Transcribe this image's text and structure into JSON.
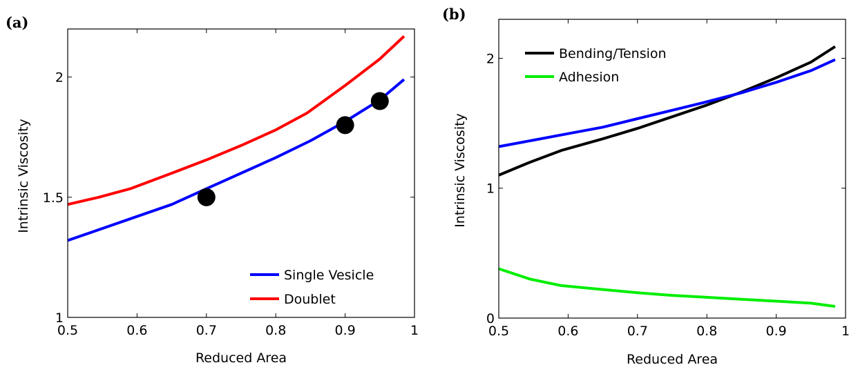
{
  "chart_data": [
    {
      "panel": "(a)",
      "type": "line",
      "xlabel": "Reduced Area",
      "ylabel": "Intrinsic Viscosity",
      "xlim": [
        0.5,
        1
      ],
      "ylim": [
        1,
        2.2
      ],
      "xticks": [
        "0.5",
        "0.6",
        "0.7",
        "0.8",
        "0.9",
        "1"
      ],
      "yticks": [
        "1",
        "1.5",
        "2"
      ],
      "legend_position": "bottom-right",
      "series": [
        {
          "name": "Single Vesicle",
          "color": "#0000ff",
          "x": [
            0.5,
            0.55,
            0.6,
            0.65,
            0.7,
            0.75,
            0.8,
            0.85,
            0.9,
            0.95,
            0.985
          ],
          "y": [
            1.32,
            1.37,
            1.42,
            1.47,
            1.535,
            1.6,
            1.665,
            1.735,
            1.815,
            1.905,
            1.99
          ]
        },
        {
          "name": "Doublet",
          "color": "#ff0000",
          "x": [
            0.5,
            0.545,
            0.59,
            0.65,
            0.7,
            0.75,
            0.8,
            0.845,
            0.9,
            0.95,
            0.985
          ],
          "y": [
            1.47,
            1.5,
            1.535,
            1.6,
            1.655,
            1.715,
            1.78,
            1.85,
            1.965,
            2.075,
            2.17
          ]
        }
      ],
      "points": {
        "color": "#000000",
        "x": [
          0.7,
          0.9,
          0.95
        ],
        "y": [
          1.5,
          1.8,
          1.9
        ]
      }
    },
    {
      "panel": "(b)",
      "type": "line",
      "xlabel": "Reduced Area",
      "ylabel": "Intrinsic Viscosity",
      "xlim": [
        0.5,
        1
      ],
      "ylim": [
        0,
        2.3
      ],
      "xticks": [
        "0.5",
        "0.6",
        "0.7",
        "0.8",
        "0.9",
        "1"
      ],
      "yticks": [
        "0",
        "1",
        "2"
      ],
      "legend_position": "top-left",
      "series": [
        {
          "name": "Bending/Tension",
          "color": "#000000",
          "x": [
            0.5,
            0.545,
            0.59,
            0.65,
            0.7,
            0.75,
            0.8,
            0.85,
            0.9,
            0.95,
            0.985
          ],
          "y": [
            1.1,
            1.2,
            1.29,
            1.38,
            1.46,
            1.55,
            1.64,
            1.74,
            1.85,
            1.97,
            2.09
          ]
        },
        {
          "name": "",
          "color": "#0000ff",
          "x": [
            0.5,
            0.55,
            0.6,
            0.65,
            0.7,
            0.75,
            0.8,
            0.85,
            0.9,
            0.95,
            0.985
          ],
          "y": [
            1.32,
            1.37,
            1.42,
            1.47,
            1.535,
            1.6,
            1.665,
            1.735,
            1.815,
            1.905,
            1.99
          ]
        },
        {
          "name": "Adhesion",
          "color": "#00ee00",
          "x": [
            0.5,
            0.545,
            0.59,
            0.65,
            0.7,
            0.75,
            0.8,
            0.85,
            0.9,
            0.95,
            0.985
          ],
          "y": [
            0.38,
            0.3,
            0.25,
            0.22,
            0.195,
            0.175,
            0.16,
            0.145,
            0.13,
            0.115,
            0.09
          ]
        }
      ]
    }
  ]
}
